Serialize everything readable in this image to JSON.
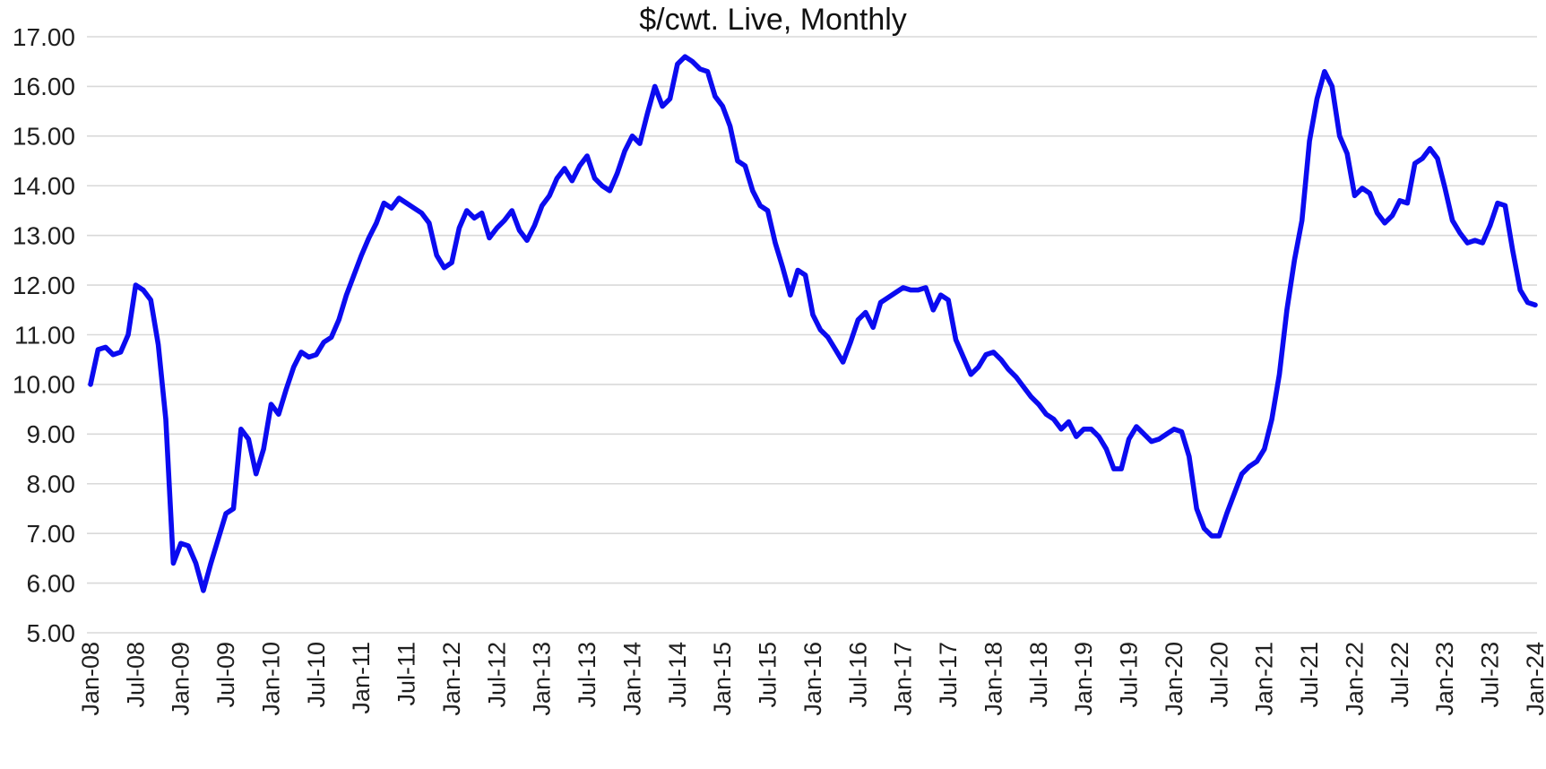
{
  "chart": {
    "title": "$/cwt. Live, Monthly"
  },
  "chart_data": {
    "type": "line",
    "title": "$/cwt. Live, Monthly",
    "xlabel": "",
    "ylabel": "",
    "frequency": "monthly",
    "x_start": "Jan-2008",
    "x_end": "Jan-2024",
    "ylim": [
      5,
      17
    ],
    "y_tick_step": 1,
    "grid": "horizontal",
    "legend": "none",
    "line_color": "#0b0bf0",
    "gridline_color": "#d9d9d9",
    "text_color": "#1f1f1f",
    "y_tick_labels": [
      "17.00",
      "16.00",
      "15.00",
      "14.00",
      "13.00",
      "12.00",
      "11.00",
      "10.00",
      "9.00",
      "8.00",
      "7.00",
      "6.00",
      "5.00"
    ],
    "x_tick_labels": [
      "Jan-08",
      "Jul-08",
      "Jan-09",
      "Jul-09",
      "Jan-10",
      "Jul-10",
      "Jan-11",
      "Jul-11",
      "Jan-12",
      "Jul-12",
      "Jan-13",
      "Jul-13",
      "Jan-14",
      "Jul-14",
      "Jan-15",
      "Jul-15",
      "Jan-16",
      "Jul-16",
      "Jan-17",
      "Jul-17",
      "Jan-18",
      "Jul-18",
      "Jan-19",
      "Jul-19",
      "Jan-20",
      "Jul-20",
      "Jan-21",
      "Jul-21",
      "Jan-22",
      "Jul-22",
      "Jan-23",
      "Jul-23",
      "Jan-24"
    ],
    "x_tick_every_n_months": 6,
    "series": [
      {
        "name": "$/cwt. Live",
        "values": [
          10.0,
          10.7,
          10.75,
          10.6,
          10.65,
          11.0,
          12.0,
          11.9,
          11.7,
          10.8,
          9.3,
          6.4,
          6.8,
          6.75,
          6.4,
          5.85,
          6.4,
          6.9,
          7.4,
          7.5,
          9.1,
          8.9,
          8.2,
          8.7,
          9.6,
          9.4,
          9.9,
          10.35,
          10.65,
          10.55,
          10.6,
          10.85,
          10.95,
          11.3,
          11.8,
          12.2,
          12.6,
          12.95,
          13.25,
          13.65,
          13.55,
          13.75,
          13.65,
          13.55,
          13.45,
          13.25,
          12.6,
          12.35,
          12.45,
          13.15,
          13.5,
          13.35,
          13.45,
          12.95,
          13.15,
          13.3,
          13.5,
          13.1,
          12.9,
          13.2,
          13.6,
          13.8,
          14.15,
          14.35,
          14.1,
          14.4,
          14.6,
          14.15,
          14.0,
          13.9,
          14.25,
          14.7,
          15.0,
          14.85,
          15.45,
          16.0,
          15.6,
          15.75,
          16.45,
          16.6,
          16.5,
          16.35,
          16.3,
          15.8,
          15.6,
          15.2,
          14.5,
          14.4,
          13.9,
          13.6,
          13.5,
          12.85,
          12.35,
          11.8,
          12.3,
          12.2,
          11.4,
          11.1,
          10.95,
          10.7,
          10.45,
          10.85,
          11.3,
          11.45,
          11.15,
          11.65,
          11.75,
          11.85,
          11.95,
          11.9,
          11.9,
          11.95,
          11.5,
          11.8,
          11.7,
          10.9,
          10.55,
          10.2,
          10.35,
          10.6,
          10.65,
          10.5,
          10.3,
          10.15,
          9.95,
          9.75,
          9.6,
          9.4,
          9.3,
          9.1,
          9.25,
          8.95,
          9.1,
          9.1,
          8.95,
          8.7,
          8.3,
          8.3,
          8.9,
          9.15,
          9.0,
          8.85,
          8.9,
          9.0,
          9.1,
          9.05,
          8.55,
          7.5,
          7.1,
          6.95,
          6.95,
          7.4,
          7.8,
          8.2,
          8.35,
          8.45,
          8.7,
          9.3,
          10.2,
          11.5,
          12.5,
          13.3,
          14.9,
          15.75,
          16.3,
          16.0,
          15.0,
          14.65,
          13.8,
          13.95,
          13.85,
          13.45,
          13.25,
          13.4,
          13.7,
          13.65,
          14.45,
          14.55,
          14.75,
          14.55,
          13.95,
          13.3,
          13.05,
          12.85,
          12.9,
          12.85,
          13.2,
          13.65,
          13.6,
          12.7,
          11.9,
          11.65,
          11.6
        ]
      }
    ]
  }
}
